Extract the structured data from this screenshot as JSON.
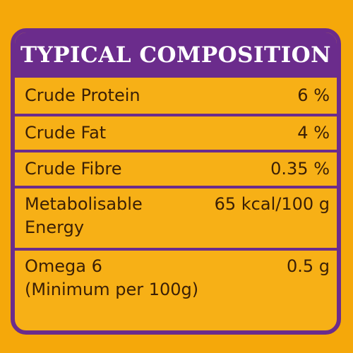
{
  "title": "TYPICAL COMPOSITION",
  "rows": [
    {
      "label": "Crude Protein",
      "value": "6 %"
    },
    {
      "label": "Crude Fat",
      "value": "4 %"
    },
    {
      "label": "Crude Fibre",
      "value": "0.35 %"
    },
    {
      "label": "Metabolisable\nEnergy",
      "value": "65 kcal/100 g"
    },
    {
      "label": "Omega 6\n(Minimum per 100g)",
      "value": "0.5 g"
    }
  ],
  "colors": {
    "background": "#f5a80a",
    "accent": "#6b2c8c",
    "text": "#3a1f06"
  }
}
